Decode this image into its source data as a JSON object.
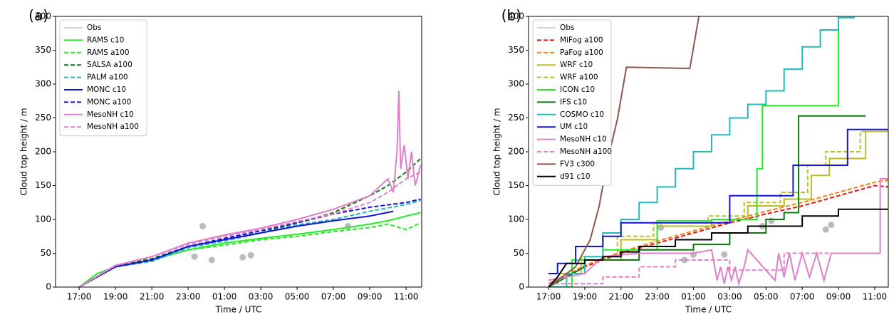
{
  "chart_data": [
    {
      "type": "line",
      "panel_label": "(a)",
      "xlabel": "Time / UTC",
      "ylabel": "Cloud top height / m",
      "xlim": [
        -1.3,
        18.86
      ],
      "ylim": [
        0,
        400
      ],
      "xticks": [
        {
          "value": 0,
          "label": "17:00"
        },
        {
          "value": 2,
          "label": "19:00"
        },
        {
          "value": 4,
          "label": "21:00"
        },
        {
          "value": 6,
          "label": "23:00"
        },
        {
          "value": 8,
          "label": "01:00"
        },
        {
          "value": 10,
          "label": "03:00"
        },
        {
          "value": 12,
          "label": "05:00"
        },
        {
          "value": 14,
          "label": "07:00"
        },
        {
          "value": 16,
          "label": "09:00"
        },
        {
          "value": 18,
          "label": "11:00"
        }
      ],
      "yticks": [
        0,
        50,
        100,
        150,
        200,
        250,
        300,
        350,
        400
      ],
      "series": [
        {
          "name": "Obs",
          "color": "#bbbbbb",
          "marker": true,
          "x": [
            6.35,
            6.8,
            7.3,
            9.0,
            9.45,
            14.8
          ],
          "values": [
            45,
            90,
            40,
            44,
            47,
            90
          ]
        },
        {
          "name": "RAMS c10",
          "color": "#22ee22",
          "dashed": false,
          "x": [
            0,
            1,
            2,
            4,
            6,
            8,
            10,
            12,
            14,
            16,
            17,
            18,
            18.8
          ],
          "values": [
            0,
            20,
            30,
            40,
            55,
            65,
            72,
            78,
            85,
            93,
            98,
            105,
            110
          ]
        },
        {
          "name": "RAMS a100",
          "color": "#22ee22",
          "dashed": true,
          "x": [
            0,
            2,
            4,
            6,
            8,
            10,
            12,
            14,
            16,
            17,
            18,
            18.8
          ],
          "values": [
            0,
            30,
            40,
            55,
            62,
            70,
            75,
            82,
            88,
            93,
            85,
            95
          ]
        },
        {
          "name": "SALSA a100",
          "color": "#117711",
          "dashed": true,
          "x": [
            0,
            2,
            4,
            6,
            8,
            10,
            12,
            14,
            16,
            17,
            18,
            18.8
          ],
          "values": [
            0,
            32,
            42,
            60,
            70,
            80,
            95,
            110,
            135,
            150,
            170,
            190
          ]
        },
        {
          "name": "PALM a100",
          "color": "#22bbbb",
          "dashed": true,
          "x": [
            0,
            2,
            4,
            6,
            8,
            10,
            12,
            14,
            16,
            18,
            18.8
          ],
          "values": [
            0,
            30,
            38,
            58,
            68,
            80,
            92,
            100,
            112,
            122,
            128
          ]
        },
        {
          "name": "MONC c10",
          "color": "#1111dd",
          "dashed": false,
          "x": [
            0,
            2,
            4,
            6,
            8,
            10,
            12,
            14,
            16,
            17.3
          ],
          "values": [
            0,
            30,
            40,
            60,
            70,
            80,
            90,
            98,
            105,
            112
          ]
        },
        {
          "name": "MONC a100",
          "color": "#1111dd",
          "dashed": true,
          "x": [
            0,
            2,
            4,
            6,
            8,
            10,
            12,
            14,
            16,
            18,
            18.8
          ],
          "values": [
            0,
            30,
            40,
            60,
            72,
            83,
            95,
            108,
            118,
            125,
            130
          ]
        },
        {
          "name": "MesoNH c10",
          "color": "#e07fcc",
          "dashed": false,
          "x": [
            0,
            2,
            4,
            6,
            8,
            10,
            12,
            14,
            16,
            17,
            17.3,
            17.5,
            17.6,
            17.7,
            17.9,
            18.1,
            18.3,
            18.5,
            18.8
          ],
          "values": [
            0,
            32,
            45,
            65,
            77,
            87,
            100,
            115,
            135,
            160,
            140,
            200,
            290,
            175,
            210,
            160,
            200,
            150,
            180
          ]
        },
        {
          "name": "MesoNH a100",
          "color": "#e07fcc",
          "dashed": true,
          "x": [
            0,
            2,
            4,
            6,
            8,
            10,
            12,
            14,
            16,
            17,
            18,
            18.8
          ],
          "values": [
            0,
            32,
            45,
            63,
            75,
            85,
            97,
            108,
            125,
            140,
            160,
            170
          ]
        }
      ]
    },
    {
      "type": "line",
      "panel_label": "(b)",
      "xlabel": "Time / UTC",
      "ylabel": "Cloud top height / m",
      "xlim": [
        -1.1,
        18.75
      ],
      "ylim": [
        0,
        400
      ],
      "xticks": [
        {
          "value": 0,
          "label": "17:00"
        },
        {
          "value": 2,
          "label": "19:00"
        },
        {
          "value": 4,
          "label": "21:00"
        },
        {
          "value": 6,
          "label": "23:00"
        },
        {
          "value": 8,
          "label": "01:00"
        },
        {
          "value": 10,
          "label": "03:00"
        },
        {
          "value": 12,
          "label": "05:00"
        },
        {
          "value": 14,
          "label": "07:00"
        },
        {
          "value": 16,
          "label": "09:00"
        },
        {
          "value": 18,
          "label": "11:00"
        }
      ],
      "yticks": [
        0,
        50,
        100,
        150,
        200,
        250,
        300,
        350,
        400
      ],
      "series": [
        {
          "name": "Obs",
          "color": "#bbbbbb",
          "marker": true,
          "x": [
            6.2,
            7.5,
            8,
            9.7,
            11.8,
            12.3,
            15.3,
            15.6
          ],
          "values": [
            88,
            40,
            48,
            48,
            90,
            98,
            85,
            92
          ]
        },
        {
          "name": "MiFog a100",
          "color": "#ee1111",
          "dashed": true,
          "x": [
            0,
            2,
            4,
            6,
            8,
            10,
            12,
            14,
            16,
            18,
            18.8
          ],
          "values": [
            5,
            30,
            50,
            65,
            80,
            95,
            108,
            120,
            135,
            150,
            148
          ]
        },
        {
          "name": "PaFog a100",
          "color": "#ff7f0e",
          "dashed": true,
          "x": [
            0,
            2,
            4,
            6,
            8,
            10,
            12,
            14,
            16,
            18,
            18.8
          ],
          "values": [
            5,
            32,
            52,
            68,
            83,
            98,
            112,
            125,
            140,
            155,
            158
          ]
        },
        {
          "name": "WRF c10",
          "color": "#bcbd22",
          "dashed": false,
          "x": [
            0,
            2,
            2,
            4,
            4,
            6,
            6,
            9,
            9,
            11,
            11,
            13,
            13,
            14.5,
            14.5,
            15.5,
            15.5,
            17.5,
            17.5,
            18.8
          ],
          "values": [
            20,
            20,
            40,
            40,
            70,
            70,
            90,
            90,
            100,
            100,
            120,
            120,
            130,
            130,
            165,
            165,
            190,
            190,
            230,
            230
          ]
        },
        {
          "name": "WRF a100",
          "color": "#bcbd22",
          "dashed": true,
          "x": [
            0,
            1.8,
            1.8,
            3.8,
            3.8,
            5.8,
            5.8,
            8.8,
            8.8,
            10.8,
            10.8,
            12.8,
            12.8,
            14.3,
            14.3,
            15.3,
            15.3,
            17.2,
            17.2,
            18.8
          ],
          "values": [
            20,
            20,
            45,
            45,
            75,
            75,
            95,
            95,
            105,
            105,
            125,
            125,
            140,
            140,
            180,
            180,
            200,
            200,
            230,
            230
          ]
        },
        {
          "name": "ICON c10",
          "color": "#22ee22",
          "dashed": false,
          "x": [
            0,
            1.3,
            1.3,
            3,
            3,
            6,
            6,
            9,
            9,
            11.5,
            11.5,
            11.8,
            11.8,
            16,
            16
          ],
          "values": [
            0,
            0,
            40,
            40,
            55,
            55,
            98,
            98,
            100,
            100,
            175,
            175,
            268,
            268,
            400
          ]
        },
        {
          "name": "IFS c10",
          "color": "#117711",
          "dashed": false,
          "x": [
            0,
            2,
            2,
            5,
            5,
            8,
            8,
            10,
            10,
            12,
            12,
            13,
            13,
            13.8,
            13.8,
            17.5
          ],
          "values": [
            0,
            30,
            40,
            40,
            55,
            55,
            63,
            63,
            80,
            80,
            100,
            100,
            110,
            110,
            253,
            253
          ]
        },
        {
          "name": "COSMO c10",
          "color": "#22bbbb",
          "dashed": false,
          "x": [
            0,
            1,
            1,
            2,
            2,
            3,
            3,
            4,
            4,
            5,
            5,
            6,
            6,
            7,
            7,
            8,
            8,
            9,
            9,
            10,
            10,
            11,
            11,
            12,
            12,
            13,
            13,
            14,
            14,
            15,
            15,
            16,
            16,
            16.9
          ],
          "values": [
            0,
            0,
            20,
            20,
            45,
            45,
            80,
            80,
            100,
            100,
            125,
            125,
            148,
            148,
            175,
            175,
            200,
            200,
            225,
            225,
            250,
            250,
            270,
            270,
            290,
            290,
            322,
            322,
            355,
            355,
            380,
            380,
            398,
            398
          ]
        },
        {
          "name": "UM c10",
          "color": "#1111dd",
          "dashed": false,
          "x": [
            0,
            0.5,
            0.5,
            1.5,
            1.5,
            3,
            3,
            4,
            4,
            10,
            10,
            13.5,
            13.5,
            16.5,
            16.5,
            18.8
          ],
          "values": [
            20,
            20,
            35,
            35,
            60,
            60,
            75,
            75,
            95,
            95,
            135,
            135,
            180,
            180,
            233,
            233
          ]
        },
        {
          "name": "MesoNH c10",
          "color": "#e07fcc",
          "dashed": false,
          "x": [
            0,
            2,
            3,
            5,
            8,
            9,
            9.3,
            9.5,
            9.7,
            9.9,
            10.1,
            10.3,
            10.5,
            10.8,
            11,
            12.5,
            12.7,
            13,
            13.3,
            13.6,
            14,
            14.4,
            14.8,
            15.2,
            15.6,
            16,
            18.3,
            18.3,
            18.8
          ],
          "values": [
            10,
            20,
            45,
            50,
            50,
            55,
            10,
            30,
            5,
            30,
            10,
            30,
            5,
            30,
            55,
            10,
            50,
            15,
            50,
            10,
            50,
            15,
            50,
            10,
            50,
            50,
            50,
            160,
            160
          ]
        },
        {
          "name": "MesoNH a100",
          "color": "#e07fcc",
          "dashed": true,
          "x": [
            0,
            3,
            3,
            5,
            5,
            7,
            7,
            10,
            10,
            13,
            13,
            16.3
          ],
          "values": [
            5,
            5,
            15,
            15,
            30,
            30,
            40,
            40,
            25,
            25,
            50,
            50
          ]
        },
        {
          "name": "FV3 c300",
          "color": "#8c564b",
          "dashed": false,
          "x": [
            0,
            1.5,
            2.3,
            2.8,
            3.2,
            3.8,
            4.3,
            7.8,
            8.3
          ],
          "values": [
            0,
            30,
            70,
            120,
            180,
            248,
            325,
            323,
            400
          ]
        },
        {
          "name": "d91 c10",
          "color": "#000000",
          "dashed": false,
          "x": [
            0,
            0.5,
            1,
            2,
            2,
            3,
            3,
            4,
            4,
            5,
            5,
            7,
            7,
            9,
            9,
            11,
            11,
            14,
            14,
            16,
            16,
            18.8
          ],
          "values": [
            0,
            15,
            35,
            35,
            40,
            40,
            45,
            45,
            52,
            52,
            60,
            60,
            70,
            70,
            80,
            80,
            90,
            90,
            105,
            105,
            115,
            115
          ]
        }
      ]
    }
  ]
}
